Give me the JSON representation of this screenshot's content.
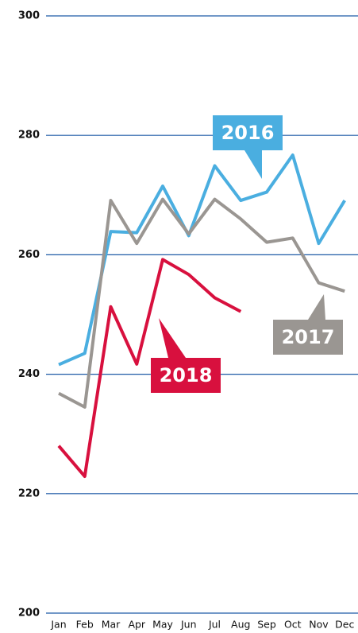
{
  "chart_data": {
    "type": "line",
    "categories": [
      "Jan",
      "Feb",
      "Mar",
      "Apr",
      "May",
      "Jun",
      "Jul",
      "Aug",
      "Sep",
      "Oct",
      "Nov",
      "Dec"
    ],
    "series": [
      {
        "name": "2016",
        "color": "#4aaee0",
        "values": [
          241.6,
          243.5,
          263.9,
          263.7,
          271.5,
          263.2,
          274.9,
          269.1,
          270.5,
          276.7,
          261.9,
          269.1
        ]
      },
      {
        "name": "2017",
        "color": "#9a9692",
        "values": [
          236.8,
          234.5,
          269.1,
          261.9,
          269.3,
          263.5,
          269.3,
          266,
          262.1,
          262.8,
          255.3,
          253.9
        ]
      },
      {
        "name": "2018",
        "color": "#d8103e",
        "values": [
          228,
          222.9,
          251.3,
          241.7,
          259.2,
          256.7,
          252.8,
          250.5,
          null,
          null,
          null,
          null
        ]
      }
    ],
    "ylim": [
      200,
      300
    ],
    "yticks": [
      200,
      220,
      240,
      260,
      280,
      300
    ],
    "grid": true
  }
}
